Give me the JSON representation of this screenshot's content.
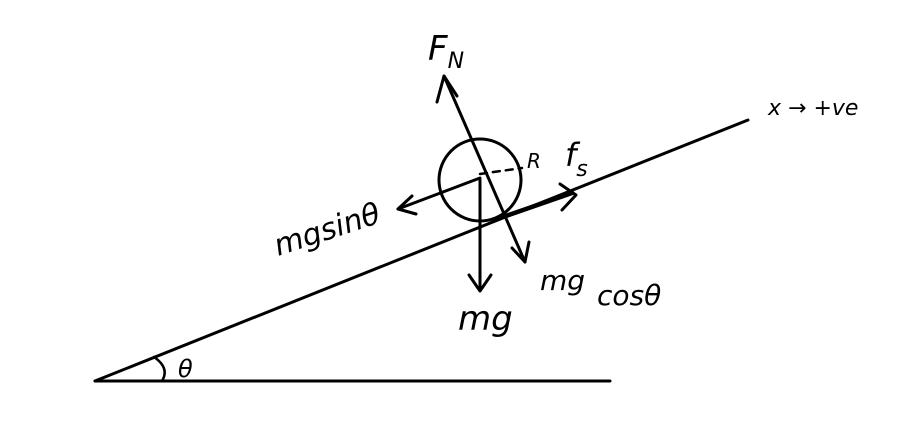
{
  "labels": {
    "normal_force": "F",
    "normal_force_sub": "N",
    "axis": "x → +ve",
    "radius": "R",
    "friction": "f",
    "friction_sub": "s",
    "parallel_component": "mgsinθ",
    "weight": "mg",
    "perpendicular_component_top": "mg",
    "perpendicular_component_bottom": "cosθ",
    "angle": "θ"
  },
  "colors": {
    "ink": "#000000",
    "background": "#ffffff"
  }
}
